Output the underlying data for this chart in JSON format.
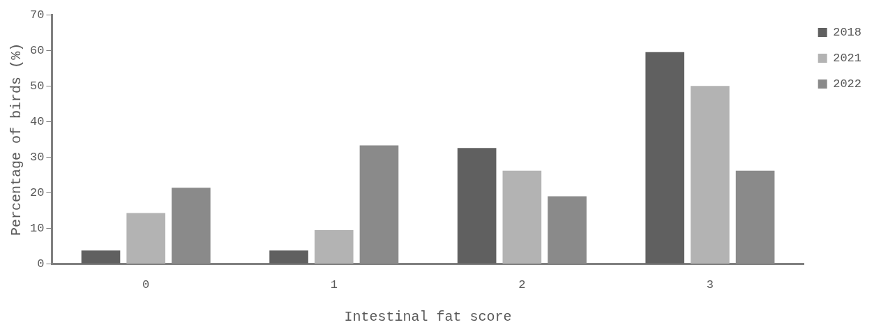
{
  "chart_data": {
    "type": "bar",
    "xlabel": "Intestinal fat score",
    "ylabel": "Percentage of birds (%)",
    "categories": [
      "0",
      "1",
      "2",
      "3"
    ],
    "series": [
      {
        "name": "2018",
        "color": "#606060",
        "values": [
          3.8,
          3.8,
          32.6,
          59.5
        ]
      },
      {
        "name": "2021",
        "color": "#b3b3b3",
        "values": [
          14.3,
          9.5,
          26.2,
          50.0
        ]
      },
      {
        "name": "2022",
        "color": "#8a8a8a",
        "values": [
          21.4,
          33.3,
          19.0,
          26.2
        ]
      }
    ],
    "ylim": [
      0,
      70
    ],
    "yticks": [
      0,
      10,
      20,
      30,
      40,
      50,
      60,
      70
    ],
    "grid": false,
    "legend": "top right"
  }
}
